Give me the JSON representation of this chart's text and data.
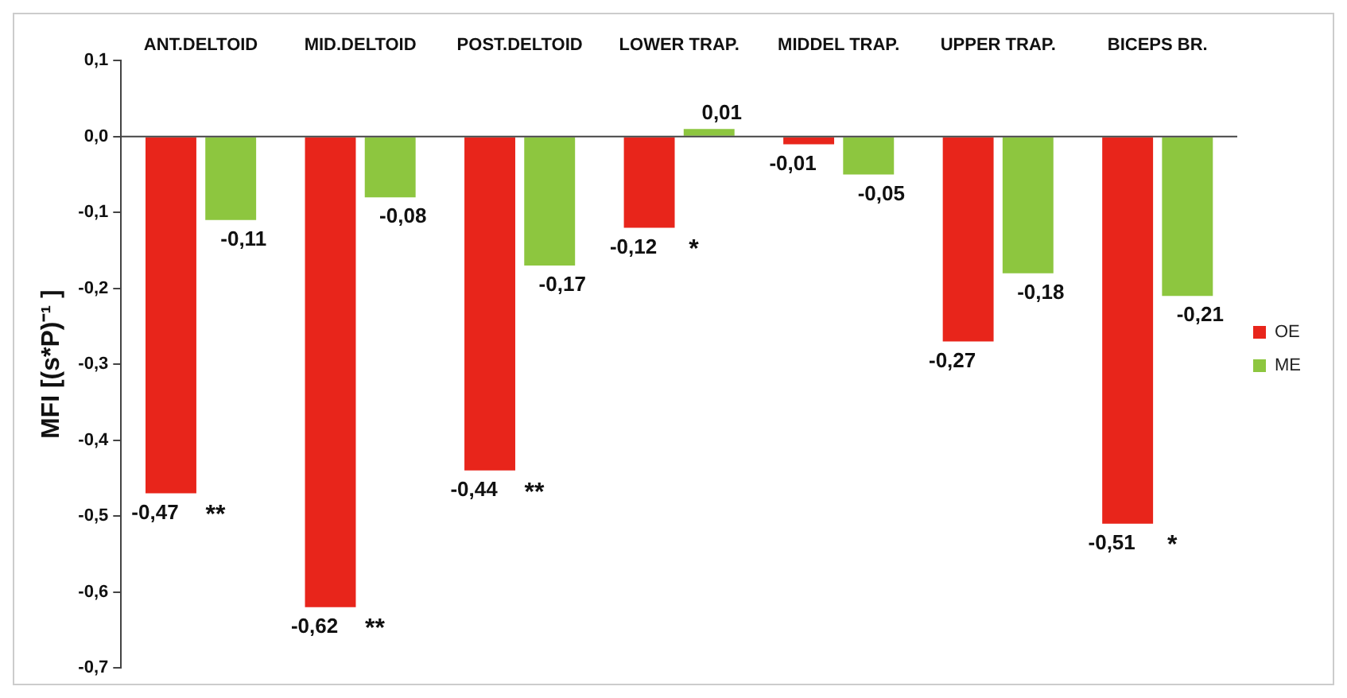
{
  "chart_data": {
    "type": "bar",
    "ylabel": "MFI [(s*P)⁻¹ ]",
    "categories": [
      "ANT.DELTOID",
      "MID.DELTOID",
      "POST.DELTOID",
      "LOWER TRAP.",
      "MIDDEL TRAP.",
      "UPPER TRAP.",
      "BICEPS BR."
    ],
    "series": [
      {
        "name": "OE",
        "color": "#e8251b",
        "values": [
          -0.47,
          -0.62,
          -0.44,
          -0.12,
          -0.01,
          -0.27,
          -0.51
        ],
        "value_labels": [
          "-0,47",
          "-0,62",
          "-0,44",
          "-0,12",
          "-0,01",
          "-0,27",
          "-0,51"
        ]
      },
      {
        "name": "ME",
        "color": "#8dc63f",
        "values": [
          -0.11,
          -0.08,
          -0.17,
          0.01,
          -0.05,
          -0.18,
          -0.21
        ],
        "value_labels": [
          "-0,11",
          "-0,08",
          "-0,17",
          "0,01",
          "-0,05",
          "-0,18",
          "-0,21"
        ]
      }
    ],
    "ylim": [
      -0.7,
      0.1
    ],
    "yticks": [
      {
        "value": 0.1,
        "label": "0,1"
      },
      {
        "value": 0,
        "label": "0,0"
      },
      {
        "value": -0.1,
        "label": "-0,1"
      },
      {
        "value": -0.2,
        "label": "-0,2"
      },
      {
        "value": -0.3,
        "label": "-0,3"
      },
      {
        "value": -0.4,
        "label": "-0,4"
      },
      {
        "value": -0.5,
        "label": "-0,5"
      },
      {
        "value": -0.6,
        "label": "-0,6"
      },
      {
        "value": -0.7,
        "label": "-0,7"
      }
    ],
    "legend": "right",
    "annotations": [
      {
        "text": "**",
        "x": "ANT.DELTOID",
        "y": -0.47
      },
      {
        "text": "**",
        "x": "MID.DELTOID",
        "y": -0.62
      },
      {
        "text": "**",
        "x": "POST.DELTOID",
        "y": -0.44
      },
      {
        "text": "*",
        "x": "LOWER TRAP.",
        "y": -0.12
      },
      {
        "text": "*",
        "x": "BICEPS BR.",
        "y": -0.51
      }
    ]
  }
}
